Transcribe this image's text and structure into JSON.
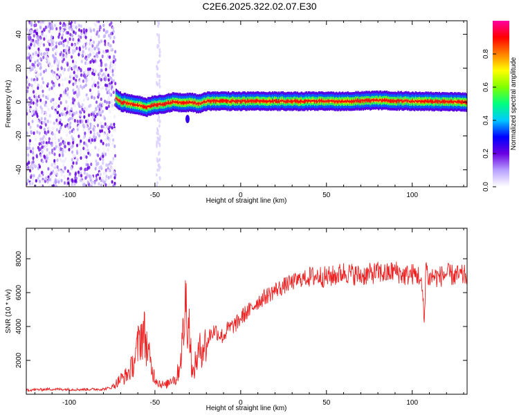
{
  "figure": {
    "title": "C2E6.2025.322.02.07.E30"
  },
  "chart_data": [
    {
      "type": "heatmap",
      "title": "",
      "xlabel": "Height of straight line (km)",
      "ylabel": "Frequency (Hz)",
      "xlim": [
        -125,
        132
      ],
      "ylim": [
        -50,
        48
      ],
      "xticks": [
        -100,
        -50,
        0,
        50,
        100
      ],
      "yticks": [
        -40,
        -20,
        0,
        20,
        40
      ],
      "colorbar": {
        "label": "Normalized spectral amplitude",
        "range": [
          0,
          1
        ],
        "ticks": [
          0.0,
          0.2,
          0.4,
          0.6,
          0.8
        ],
        "colors": [
          "#ffffff",
          "#b8a0ff",
          "#6a00e0",
          "#0000ff",
          "#00c8ff",
          "#00ff80",
          "#80ff00",
          "#ffff00",
          "#ff8000",
          "#ff0000",
          "#ff00a0"
        ]
      },
      "regions": [
        {
          "name": "noise",
          "x_range": [
            -125,
            -73
          ],
          "freq_range": [
            -50,
            48
          ],
          "amplitude": 0.15
        },
        {
          "name": "spike",
          "x_range": [
            -49,
            -47
          ],
          "freq_range": [
            -50,
            48
          ],
          "amplitude": 0.05
        },
        {
          "name": "carrier",
          "x_range": [
            -73,
            132
          ],
          "freq_center": 0,
          "freq_halfwidth": 4,
          "amplitude_peak": 0.9
        }
      ],
      "carrier_profile": [
        {
          "x": -73,
          "f": 2
        },
        {
          "x": -70,
          "f": 0
        },
        {
          "x": -65,
          "f": -1
        },
        {
          "x": -60,
          "f": -2
        },
        {
          "x": -55,
          "f": -3
        },
        {
          "x": -50,
          "f": -1.5
        },
        {
          "x": -45,
          "f": -1
        },
        {
          "x": -40,
          "f": 0
        },
        {
          "x": -35,
          "f": -0.5
        },
        {
          "x": -30,
          "f": 0
        },
        {
          "x": -25,
          "f": -1
        },
        {
          "x": -20,
          "f": 0.5
        },
        {
          "x": -10,
          "f": 0.5
        },
        {
          "x": 0,
          "f": 0.5
        },
        {
          "x": 20,
          "f": 0.5
        },
        {
          "x": 40,
          "f": 0.5
        },
        {
          "x": 60,
          "f": 0.5
        },
        {
          "x": 80,
          "f": 1
        },
        {
          "x": 100,
          "f": 0.5
        },
        {
          "x": 132,
          "f": 0
        }
      ]
    },
    {
      "type": "line",
      "title": "",
      "xlabel": "Height of straight line (km)",
      "ylabel": "SNR (10 * v/v)",
      "xlim": [
        -125,
        132
      ],
      "ylim": [
        0,
        9800
      ],
      "xticks": [
        -100,
        -50,
        0,
        50,
        100
      ],
      "yticks": [
        2000,
        4000,
        6000,
        8000
      ],
      "series": [
        {
          "color": "#ee2222",
          "x": [
            -125,
            -110,
            -95,
            -80,
            -75,
            -72,
            -70,
            -68,
            -66,
            -64,
            -62,
            -60,
            -58,
            -56,
            -54,
            -52,
            -50,
            -48,
            -46,
            -44,
            -42,
            -40,
            -38,
            -36,
            -34,
            -32,
            -30,
            -28,
            -26,
            -24,
            -22,
            -20,
            -18,
            -15,
            -12,
            -10,
            -8,
            -5,
            -2,
            0,
            3,
            6,
            9,
            12,
            15,
            18,
            21,
            24,
            27,
            30,
            35,
            40,
            45,
            50,
            55,
            60,
            65,
            70,
            75,
            80,
            85,
            90,
            95,
            100,
            104,
            106,
            107,
            108,
            109,
            110,
            112,
            115,
            120,
            125,
            132
          ],
          "y": [
            250,
            300,
            280,
            300,
            400,
            700,
            900,
            1000,
            1200,
            1500,
            2000,
            2800,
            3600,
            3500,
            2500,
            1500,
            1000,
            700,
            600,
            500,
            700,
            1000,
            800,
            1500,
            3000,
            5500,
            4000,
            1000,
            2000,
            2500,
            3000,
            2800,
            3500,
            3800,
            3500,
            3400,
            3800,
            4000,
            4200,
            4500,
            4800,
            5000,
            5400,
            5600,
            5800,
            6000,
            6200,
            6300,
            6500,
            6600,
            6800,
            6900,
            7000,
            6900,
            7000,
            7200,
            7100,
            7000,
            7100,
            7200,
            7100,
            7300,
            7000,
            7100,
            7000,
            6000,
            4200,
            7800,
            7000,
            6800,
            7000,
            6900,
            7100,
            7000,
            7000
          ]
        }
      ]
    }
  ]
}
